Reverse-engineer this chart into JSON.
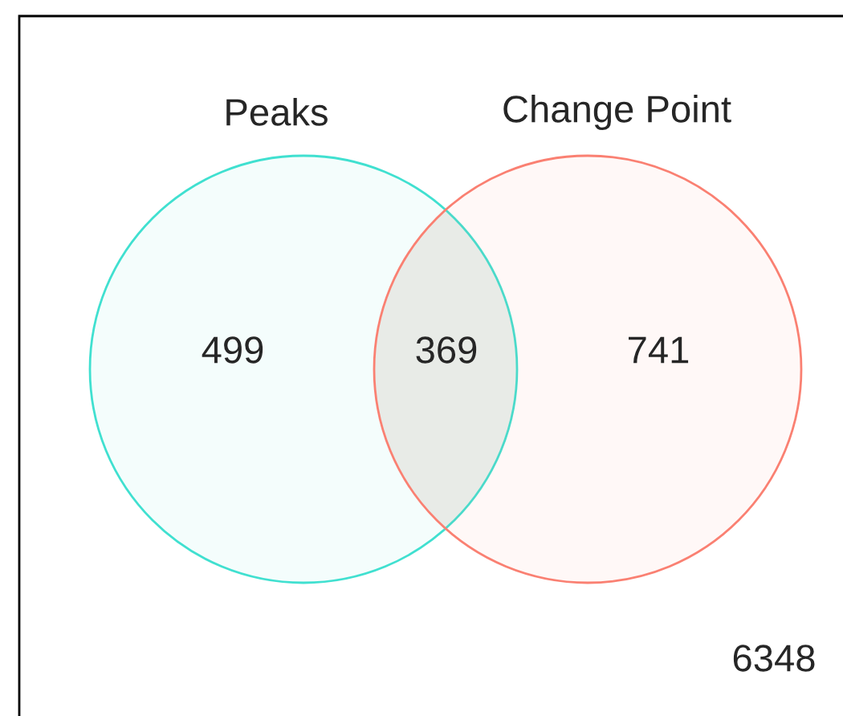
{
  "chart_data": {
    "type": "other",
    "categories": [
      null,
      null,
      null,
      null
    ],
    "colors": [
      "#40e0d0",
      "#f2f4f1",
      "#fa8072",
      "#ffffff"
    ],
    "values": [
      499,
      369,
      741,
      6348
    ],
    "data_labels": true,
    "annotations": [
      "Peaks",
      "Change Point"
    ]
  }
}
